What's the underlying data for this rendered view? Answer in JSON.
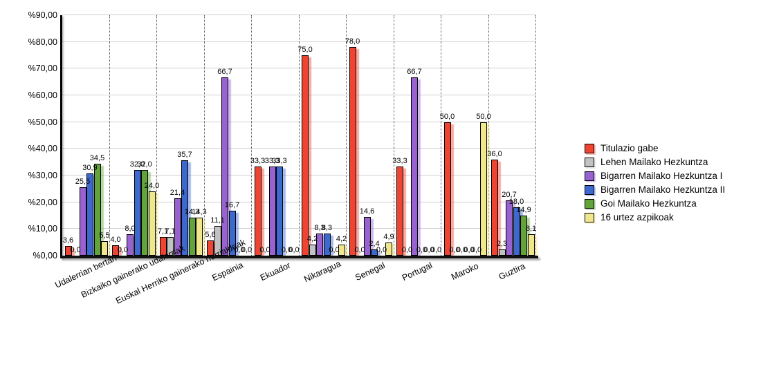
{
  "chart_data": {
    "type": "bar",
    "title": "",
    "xlabel": "",
    "ylabel": "",
    "ylim": [
      0,
      90
    ],
    "grid": true,
    "legend_position": "right",
    "decimal_separator": ",",
    "categories": [
      "Udalerrian bertan",
      "Bizkaiko gainerako udalerriak",
      "Euskal Herriko gainerako herrialdeak",
      "Espainia",
      "Ekuador",
      "Nikaragua",
      "Senegal",
      "Portugal",
      "Maroko",
      "Guztira"
    ],
    "series": [
      {
        "name": "Titulazio gabe",
        "color": "#EF4431",
        "values": [
          3.6,
          4.0,
          7.1,
          5.6,
          33.3,
          75.0,
          78.0,
          33.3,
          50.0,
          36.0
        ]
      },
      {
        "name": "Lehen Mailako Hezkuntza",
        "color": "#C2C2C2",
        "values": [
          0.0,
          0.0,
          7.1,
          11.1,
          0.0,
          4.2,
          0.0,
          0.0,
          0.0,
          2.3
        ]
      },
      {
        "name": "Bigarren Mailako Hezkuntza I",
        "color": "#9862D1",
        "values": [
          25.5,
          8.0,
          21.4,
          66.7,
          33.3,
          8.3,
          14.6,
          66.7,
          0.0,
          20.7
        ]
      },
      {
        "name": "Bigarren Mailako Hezkuntza II",
        "color": "#3D68CE",
        "values": [
          30.9,
          32.0,
          35.7,
          16.7,
          33.3,
          8.3,
          2.4,
          0.0,
          0.0,
          18.0
        ]
      },
      {
        "name": "Goi Mailako Hezkuntza",
        "color": "#62A33B",
        "values": [
          34.5,
          32.0,
          14.3,
          0.0,
          0.0,
          0.0,
          0.0,
          0.0,
          0.0,
          14.9
        ]
      },
      {
        "name": "16 urtez azpikoak",
        "color": "#F0E68C",
        "values": [
          5.5,
          24.0,
          14.3,
          0.0,
          0.0,
          4.2,
          4.9,
          0.0,
          50.0,
          8.1
        ]
      }
    ],
    "y_ticks": [
      {
        "value": 0,
        "label": "%0,00"
      },
      {
        "value": 10,
        "label": "%10,00"
      },
      {
        "value": 20,
        "label": "%20,00"
      },
      {
        "value": 30,
        "label": "%30,00"
      },
      {
        "value": 40,
        "label": "%40,00"
      },
      {
        "value": 50,
        "label": "%50,00"
      },
      {
        "value": 60,
        "label": "%60,00"
      },
      {
        "value": 70,
        "label": "%70,00"
      },
      {
        "value": 80,
        "label": "%80,00"
      },
      {
        "value": 90,
        "label": "%90,00"
      }
    ]
  }
}
